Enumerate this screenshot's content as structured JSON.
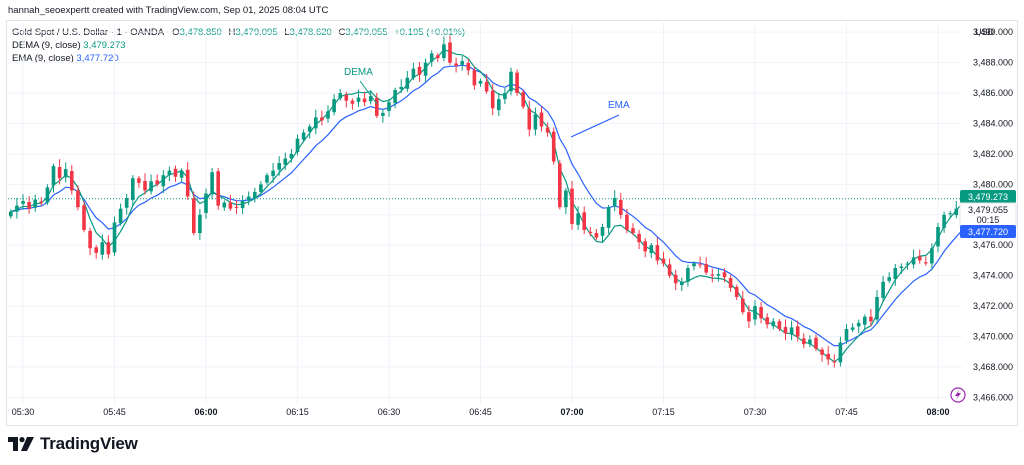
{
  "header": {
    "credit": "hannah_seoexpertt created with TradingView.com, Sep 01, 2025 08:04 UTC"
  },
  "legend": {
    "symbol": "Gold Spot / U.S. Dollar · 1 · OANDA",
    "ohlc": {
      "o_label": "O",
      "o": "3,478.850",
      "h_label": "H",
      "h": "3,479.095",
      "l_label": "L",
      "l": "3,478.620",
      "c_label": "C",
      "c": "3,479.055",
      "change": "+0.195 (+0.01%)"
    },
    "dema_label": "DEMA (9, close)",
    "dema_value": "3,479.273",
    "ema_label": "EMA (9, close)",
    "ema_value": "3,477.720"
  },
  "axis": {
    "currency": "USD"
  },
  "annotations": {
    "dema": "DEMA",
    "ema": "EMA"
  },
  "price_tags": {
    "dema": "3,479.273",
    "last": "3,479.055",
    "countdown": "00:15",
    "ema": "3,477.720"
  },
  "footer": {
    "brand": "TradingView"
  },
  "colors": {
    "up": "#089981",
    "down": "#f23645",
    "dema": "#089981",
    "ema": "#2962ff",
    "grid": "#f0f3fa",
    "text": "#131722"
  },
  "chart_data": {
    "type": "candlestick",
    "symbol": "Gold Spot / U.S. Dollar",
    "interval": "1",
    "ylim": [
      3465.5,
      3490.8
    ],
    "yticks": [
      3466,
      3468,
      3470,
      3472,
      3474,
      3476,
      3478,
      3480,
      3482,
      3484,
      3486,
      3488,
      3490
    ],
    "ytick_labels": [
      "3,466.000",
      "3,468.000",
      "3,470.000",
      "3,472.000",
      "3,474.000",
      "3,476.000",
      "3,478.000",
      "3,480.000",
      "3,482.000",
      "3,484.000",
      "3,486.000",
      "3,488.000",
      "3,490.000"
    ],
    "xticks": [
      {
        "label": "05:30",
        "minute": 0
      },
      {
        "label": "05:45",
        "minute": 15
      },
      {
        "label": "06:00",
        "minute": 30,
        "bold": true
      },
      {
        "label": "06:15",
        "minute": 45
      },
      {
        "label": "06:30",
        "minute": 60
      },
      {
        "label": "06:45",
        "minute": 75
      },
      {
        "label": "07:00",
        "minute": 90,
        "bold": true
      },
      {
        "label": "07:15",
        "minute": 105
      },
      {
        "label": "07:30",
        "minute": 120
      },
      {
        "label": "07:45",
        "minute": 135
      },
      {
        "label": "08:00",
        "minute": 150,
        "bold": true
      }
    ],
    "first_minute": -2,
    "closes": [
      3478.2,
      3478.6,
      3478.9,
      3478.4,
      3479.0,
      3478.8,
      3479.8,
      3481.2,
      3480.4,
      3481.0,
      3479.6,
      3478.5,
      3477.0,
      3475.8,
      3475.5,
      3476.2,
      3475.4,
      3477.5,
      3478.4,
      3479.1,
      3480.4,
      3480.1,
      3479.6,
      3480.2,
      3480.0,
      3480.6,
      3480.9,
      3480.5,
      3480.9,
      3479.2,
      3476.8,
      3478.0,
      3479.4,
      3480.8,
      3478.6,
      3478.8,
      3478.4,
      3478.5,
      3478.9,
      3479.2,
      3479.5,
      3480.0,
      3480.6,
      3480.9,
      3481.4,
      3481.7,
      3482.0,
      3483.0,
      3483.4,
      3483.8,
      3484.4,
      3484.2,
      3484.8,
      3485.6,
      3486.0,
      3485.5,
      3485.3,
      3485.7,
      3485.4,
      3485.8,
      3484.5,
      3484.7,
      3485.4,
      3486.2,
      3486.4,
      3487.0,
      3487.6,
      3487.2,
      3488.0,
      3488.6,
      3488.3,
      3489.2,
      3488.0,
      3487.8,
      3488.1,
      3487.5,
      3486.5,
      3486.8,
      3486.1,
      3485.0,
      3485.6,
      3486.0,
      3487.4,
      3486.0,
      3485.1,
      3483.6,
      3484.6,
      3483.8,
      3483.4,
      3481.5,
      3478.5,
      3479.6,
      3477.4,
      3478.1,
      3477.0,
      3476.8,
      3476.5,
      3477.2,
      3478.5,
      3479.1,
      3478.0,
      3477.0,
      3476.8,
      3476.2,
      3475.6,
      3476.0,
      3475.0,
      3474.8,
      3474.0,
      3473.5,
      3473.6,
      3474.5,
      3474.8,
      3474.7,
      3474.2,
      3474.0,
      3474.1,
      3473.9,
      3473.2,
      3472.6,
      3471.6,
      3471.0,
      3472.0,
      3471.2,
      3470.8,
      3471.0,
      3470.5,
      3470.2,
      3470.6,
      3470.0,
      3469.5,
      3469.8,
      3469.2,
      3468.8,
      3468.5,
      3468.3,
      3469.6,
      3470.5,
      3470.6,
      3470.9,
      3471.3,
      3471.0,
      3472.6,
      3473.6,
      3473.9,
      3474.5,
      3474.6,
      3474.8,
      3475.2,
      3475.0,
      3474.8,
      3475.8,
      3477.2,
      3478.0,
      3478.1,
      3478.4,
      3478.8,
      3479.055
    ],
    "series": [
      {
        "name": "DEMA (9, close)",
        "last": 3479.273
      },
      {
        "name": "EMA (9, close)",
        "last": 3477.72
      }
    ]
  }
}
